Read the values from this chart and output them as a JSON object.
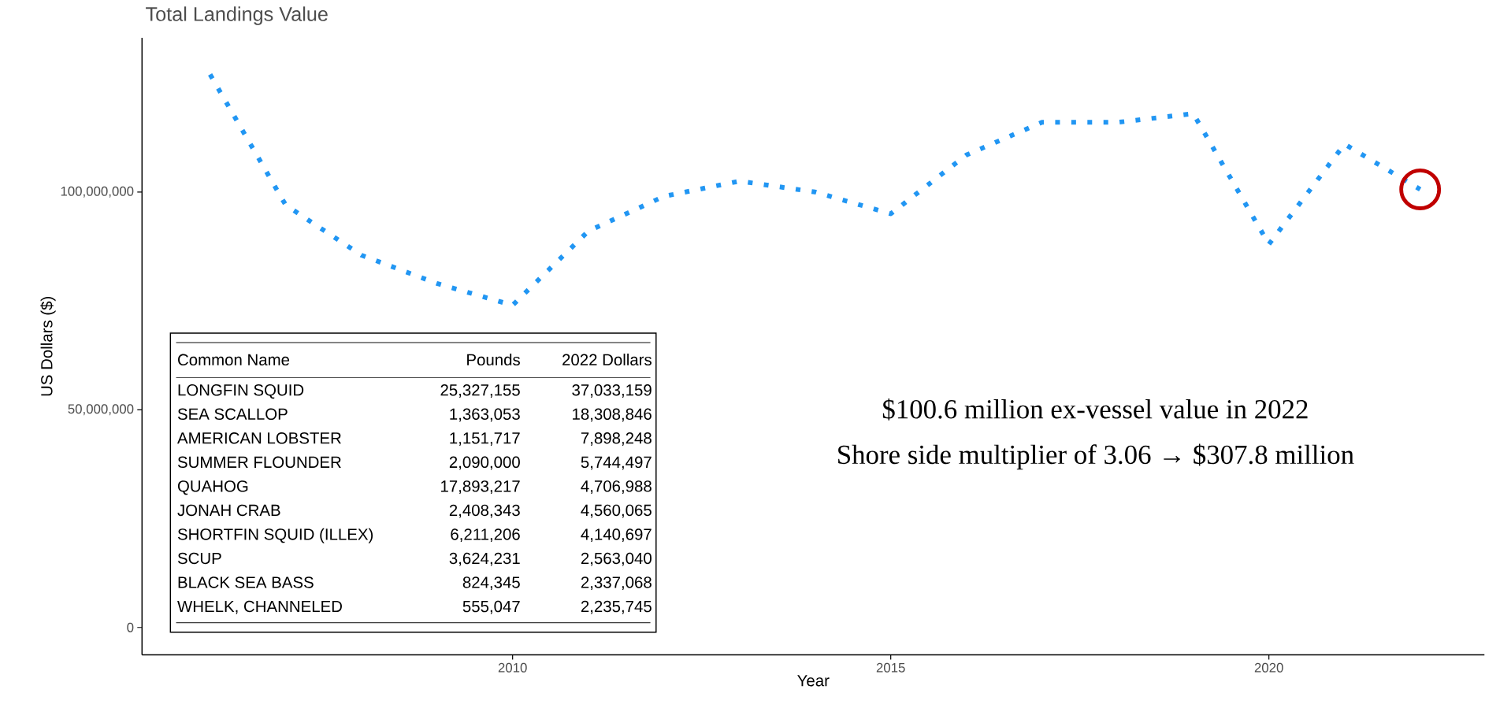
{
  "chart_data": [
    {
      "type": "line",
      "title": "Total Landings Value",
      "xlabel": "Year",
      "ylabel": "US Dollars ($)",
      "x": [
        2006,
        2007,
        2008,
        2009,
        2010,
        2011,
        2012,
        2013,
        2014,
        2015,
        2016,
        2017,
        2018,
        2019,
        2020,
        2021,
        2022
      ],
      "series": [
        {
          "color": "#2196f3",
          "values": [
            127000000,
            97000000,
            85500000,
            79000000,
            74000000,
            91000000,
            99000000,
            102500000,
            100000000,
            95000000,
            108500000,
            116000000,
            116000000,
            118000000,
            88000000,
            111000000,
            100600000
          ]
        }
      ],
      "xlim": [
        2005.1,
        2022.85
      ],
      "ylim": [
        -6300000,
        135400000
      ],
      "xticks": [
        2010,
        2015,
        2020
      ],
      "yticks": [
        0,
        {
          "value": 50000000,
          "label": "50,000,000"
        },
        {
          "value": 100000000,
          "label": "100,000,000"
        }
      ],
      "line_style": "dotted",
      "marker": "none",
      "annotations": [
        "$100.6 million ex-vessel value in 2022",
        "Shore side multiplier of 3.06 → $307.8 million"
      ]
    },
    {
      "type": "other",
      "xlabel": "Common Name",
      "categories": [
        "LONGFIN SQUID",
        "SEA SCALLOP",
        "AMERICAN LOBSTER",
        "SUMMER FLOUNDER",
        "QUAHOG",
        "JONAH CRAB",
        "SHORTFIN SQUID (ILLEX)",
        "SCUP",
        "BLACK SEA BASS",
        "WHELK, CHANNELED"
      ],
      "series": [
        {
          "name": "Pounds",
          "values": [
            25327155,
            1363053,
            1151717,
            2090000,
            17893217,
            2408343,
            6211206,
            3624231,
            824345,
            555047
          ],
          "value_labels": [
            "25,327,155",
            "1,363,053",
            "1,151,717",
            "2,090,000",
            "17,893,217",
            "2,408,343",
            "6,211,206",
            "3,624,231",
            "824,345",
            "555,047"
          ]
        },
        {
          "name": "2022 Dollars",
          "values": [
            37033159,
            18308846,
            7898248,
            5744497,
            4706988,
            4560065,
            4140697,
            2563040,
            2337068,
            2235745
          ],
          "value_labels": [
            "37,033,159",
            "18,308,846",
            "7,898,248",
            "5,744,497",
            "4,706,988",
            "4,560,065",
            "4,140,697",
            "2,563,040",
            "2,337,068",
            "2,235,745"
          ]
        }
      ]
    }
  ]
}
